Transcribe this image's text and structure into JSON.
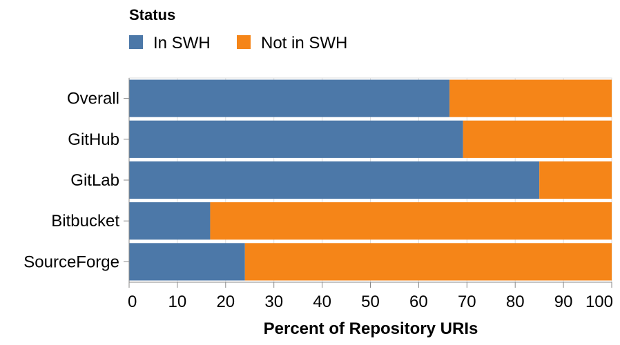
{
  "legend": {
    "title": "Status"
  },
  "chart_data": {
    "type": "bar",
    "orientation": "horizontal",
    "stacked": true,
    "categories": [
      "Overall",
      "GitHub",
      "GitLab",
      "Bitbucket",
      "SourceForge"
    ],
    "series": [
      {
        "name": "In SWH",
        "color": "#4c78a8",
        "values": [
          66.4,
          69.2,
          85.0,
          16.8,
          24.0
        ]
      },
      {
        "name": "Not in SWH",
        "color": "#f58518",
        "values": [
          33.6,
          30.8,
          15.0,
          83.2,
          76.0
        ]
      }
    ],
    "xlabel": "Percent of Repository URIs",
    "ylabel": "",
    "xlim": [
      0,
      100
    ],
    "xticks": [
      0,
      10,
      20,
      30,
      40,
      50,
      60,
      70,
      80,
      90,
      100
    ],
    "grid": true,
    "legend_position": "top-left"
  }
}
